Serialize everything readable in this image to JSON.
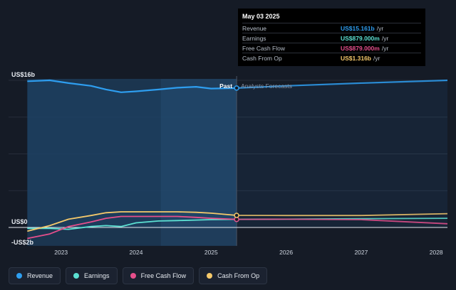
{
  "colors": {
    "revenue": "#2e9ef0",
    "earnings": "#5ce0d2",
    "free_cash_flow": "#e64f8c",
    "cash_from_op": "#f5c96b",
    "background": "#151b26"
  },
  "tooltip": {
    "date": "May 03 2025",
    "rows": [
      {
        "label": "Revenue",
        "value": "US$15.161b",
        "unit": "/yr",
        "color": "#2e9ef0"
      },
      {
        "label": "Earnings",
        "value": "US$879.000m",
        "unit": "/yr",
        "color": "#5ce0d2"
      },
      {
        "label": "Free Cash Flow",
        "value": "US$879.000m",
        "unit": "/yr",
        "color": "#e64f8c"
      },
      {
        "label": "Cash From Op",
        "value": "US$1.316b",
        "unit": "/yr",
        "color": "#f5c96b"
      }
    ]
  },
  "legend": [
    {
      "label": "Revenue",
      "color": "#2e9ef0"
    },
    {
      "label": "Earnings",
      "color": "#5ce0d2"
    },
    {
      "label": "Free Cash Flow",
      "color": "#e64f8c"
    },
    {
      "label": "Cash From Op",
      "color": "#f5c96b"
    }
  ],
  "chart_data": {
    "type": "line",
    "y_unit": "US$ billions",
    "ylim": [
      -2,
      16
    ],
    "y_tick_labels": [
      {
        "label": "US$16b",
        "value": 16
      },
      {
        "label": "US$0",
        "value": 0
      },
      {
        "label": "-US$2b",
        "value": -2
      }
    ],
    "x_tick_labels": [
      {
        "label": "2023",
        "value": 2023.0
      },
      {
        "label": "2024",
        "value": 2024.0
      },
      {
        "label": "2025",
        "value": 2025.0
      },
      {
        "label": "2026",
        "value": 2026.0
      },
      {
        "label": "2027",
        "value": 2027.0
      },
      {
        "label": "2028",
        "value": 2028.0
      }
    ],
    "xlim": [
      2022.3,
      2028.15
    ],
    "divider": {
      "x": 2025.34,
      "past_label": "Past",
      "forecast_label": "Analysts Forecasts"
    },
    "series": [
      {
        "name": "Revenue",
        "key": "revenue",
        "x": [
          2022.55,
          2022.85,
          2023.1,
          2023.4,
          2023.6,
          2023.8,
          2024.0,
          2024.3,
          2024.55,
          2024.8,
          2025.0,
          2025.34,
          2026.0,
          2027.0,
          2028.15
        ],
        "y": [
          15.9,
          16.0,
          15.7,
          15.4,
          15.0,
          14.7,
          14.8,
          15.0,
          15.2,
          15.3,
          15.1,
          15.16,
          15.4,
          15.7,
          16.0
        ]
      },
      {
        "name": "Earnings",
        "key": "earnings",
        "x": [
          2022.55,
          2022.85,
          2023.1,
          2023.4,
          2023.6,
          2023.8,
          2024.0,
          2024.3,
          2024.55,
          2024.8,
          2025.0,
          2025.34,
          2026.0,
          2027.0,
          2028.15
        ],
        "y": [
          -0.1,
          -0.1,
          -0.2,
          0.1,
          0.2,
          0.1,
          0.5,
          0.7,
          0.75,
          0.8,
          0.85,
          0.879,
          0.9,
          0.95,
          1.0
        ]
      },
      {
        "name": "Free Cash Flow",
        "key": "free_cash_flow",
        "x": [
          2022.55,
          2022.85,
          2023.1,
          2023.4,
          2023.6,
          2023.8,
          2024.0,
          2024.3,
          2024.55,
          2024.8,
          2025.0,
          2025.34,
          2026.0,
          2027.0,
          2028.15
        ],
        "y": [
          -1.2,
          -0.7,
          0.1,
          0.6,
          1.0,
          1.2,
          1.2,
          1.2,
          1.2,
          1.1,
          1.0,
          0.879,
          0.9,
          0.85,
          0.4
        ]
      },
      {
        "name": "Cash From Op",
        "key": "cash_from_op",
        "x": [
          2022.55,
          2022.85,
          2023.1,
          2023.4,
          2023.6,
          2023.8,
          2024.0,
          2024.3,
          2024.55,
          2024.8,
          2025.0,
          2025.34,
          2026.0,
          2027.0,
          2028.15
        ],
        "y": [
          -0.4,
          0.2,
          0.9,
          1.3,
          1.6,
          1.7,
          1.7,
          1.7,
          1.7,
          1.65,
          1.55,
          1.316,
          1.3,
          1.3,
          1.5
        ]
      }
    ]
  }
}
